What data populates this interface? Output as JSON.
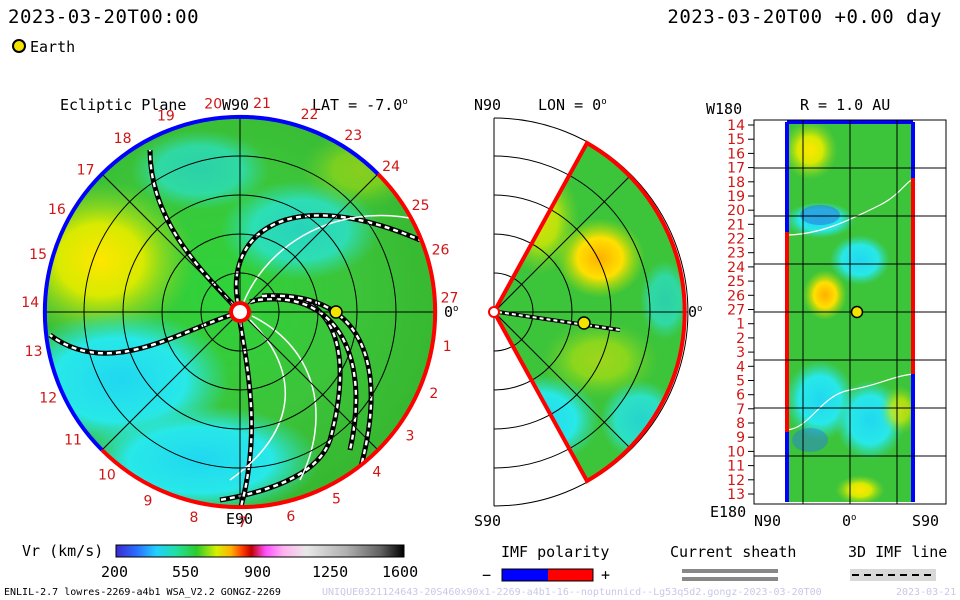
{
  "header": {
    "date_left": "2023-03-20T00:00",
    "date_right": "2023-03-20T00 +0.00 day",
    "legend_label": "Earth"
  },
  "panels": {
    "ecliptic": {
      "title": "Ecliptic Plane",
      "lat": "LAT = -7.0",
      "w_label": "W90",
      "e_label": "E90",
      "zero_label": "0"
    },
    "meridional": {
      "lon": "LON = 0",
      "n_label": "N90",
      "s_label": "S90",
      "zero_label": "0"
    },
    "map": {
      "r_label": "R = 1.0 AU",
      "w180": "W180",
      "e180": "E180",
      "n90": "N90",
      "s90": "S90",
      "zero_label": "0"
    }
  },
  "carrington_ring": [
    "1",
    "2",
    "3",
    "4",
    "5",
    "6",
    "7",
    "8",
    "9",
    "10",
    "11",
    "12",
    "13",
    "14",
    "15",
    "16",
    "17",
    "18",
    "19",
    "20",
    "21",
    "22",
    "23",
    "24",
    "25",
    "26",
    "27"
  ],
  "map_ticks": [
    "14",
    "15",
    "16",
    "17",
    "18",
    "19",
    "20",
    "21",
    "22",
    "23",
    "24",
    "25",
    "26",
    "27",
    "1",
    "2",
    "3",
    "4",
    "5",
    "6",
    "7",
    "8",
    "9",
    "10",
    "11",
    "12",
    "13"
  ],
  "colorbar": {
    "label": "Vr (km/s)",
    "ticks": [
      "200",
      "550",
      "900",
      "1250",
      "1600"
    ]
  },
  "legends": {
    "imf_title": "IMF polarity",
    "imf_minus": "−",
    "imf_plus": "+",
    "sheath_title": "Current sheath",
    "imf_line_title": "3D IMF line"
  },
  "footer": {
    "left": "ENLIL-2.7 lowres-2269-a4b1 WSA_V2.2 GONGZ-2269",
    "center": "UNIQUE0321124643-20S460x90x1-2269-a4b1-16--noptunnicd--Lg53q5d2.gongz-2023-03-20T00",
    "right": "2023-03-21"
  },
  "colors": {
    "earth": "#f2e300",
    "imf_minus": "#0000ff",
    "imf_plus": "#ff0000",
    "number_red": "#d21414"
  },
  "chart_data": {
    "type": "heatmap",
    "variable": "Vr (km/s)",
    "scale_range": [
      200,
      1600
    ],
    "earth": {
      "distance_au": 1.0,
      "longitude_deg": 0,
      "latitude_deg": -7.0
    }
  }
}
